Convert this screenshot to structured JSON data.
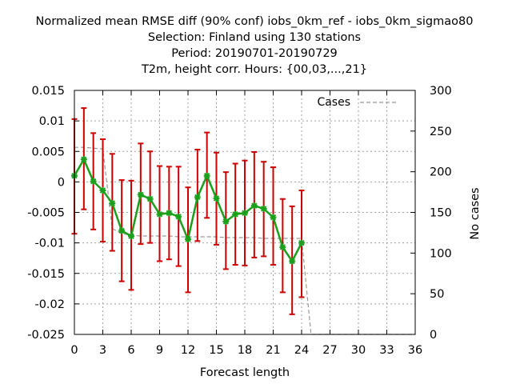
{
  "chart_data": {
    "type": "line",
    "title_lines": [
      "Normalized mean RMSE diff (90% conf) iobs_0km_ref - iobs_0km_sigmao80",
      "Selection: Finland using   130 stations",
      "Period: 20190701-20190729",
      "T2m, height corr.   Hours: {00,03,...,21}"
    ],
    "xlabel": "Forecast length",
    "ylabel_right": "No cases",
    "xlim": [
      0,
      36
    ],
    "ylim": [
      -0.025,
      0.015
    ],
    "y2lim": [
      0,
      300
    ],
    "xticks": [
      "0",
      "3",
      "6",
      "9",
      "12",
      "15",
      "18",
      "21",
      "24",
      "27",
      "30",
      "33",
      "36"
    ],
    "yticks": [
      "0.015",
      "0.01",
      "0.005",
      "0",
      "-0.005",
      "-0.01",
      "-0.015",
      "-0.02",
      "-0.025"
    ],
    "y2ticks": [
      "300",
      "250",
      "200",
      "150",
      "100",
      "50",
      "0"
    ],
    "grid": true,
    "legend_position": "top-right",
    "series": [
      {
        "name": "",
        "color": "#1ca01c",
        "error_color": "#cc0000",
        "x": [
          0,
          1,
          2,
          3,
          4,
          5,
          6,
          7,
          8,
          9,
          10,
          11,
          12,
          13,
          14,
          15,
          16,
          17,
          18,
          19,
          20,
          21,
          22,
          23,
          24
        ],
        "y": [
          0.001,
          0.0037,
          0.0001,
          -0.0014,
          -0.0035,
          -0.008,
          -0.0089,
          -0.0021,
          -0.0028,
          -0.0053,
          -0.0051,
          -0.0057,
          -0.0094,
          -0.0025,
          0.001,
          -0.0027,
          -0.0065,
          -0.0053,
          -0.0051,
          -0.0039,
          -0.0044,
          -0.0058,
          -0.0107,
          -0.013,
          -0.01
        ],
        "upper": [
          0.0103,
          0.0121,
          0.008,
          0.007,
          0.0046,
          0.0003,
          0.0002,
          0.0063,
          0.005,
          0.0026,
          0.0025,
          0.0025,
          -0.0009,
          0.0053,
          0.0081,
          0.0048,
          0.0016,
          0.003,
          0.0035,
          0.0049,
          0.0033,
          0.0024,
          -0.0028,
          -0.004,
          -0.0014
        ],
        "lower": [
          -0.0085,
          -0.0045,
          -0.0078,
          -0.0098,
          -0.0113,
          -0.0163,
          -0.0177,
          -0.0102,
          -0.01,
          -0.013,
          -0.0127,
          -0.0138,
          -0.0181,
          -0.0097,
          -0.0059,
          -0.0103,
          -0.0143,
          -0.0136,
          -0.0137,
          -0.0124,
          -0.0122,
          -0.0136,
          -0.0181,
          -0.0217,
          -0.0189
        ]
      },
      {
        "name": "Cases",
        "color": "#999999",
        "axis": "right",
        "x": [
          0,
          1,
          2,
          3,
          4,
          5,
          6,
          7,
          8,
          9,
          10,
          11,
          12,
          13,
          14,
          15,
          16,
          17,
          18,
          19,
          20,
          21,
          22,
          23,
          24,
          25,
          26,
          27,
          28,
          29,
          30,
          31,
          32,
          33,
          34,
          35,
          36
        ],
        "y": [
          230,
          230,
          229,
          228,
          130,
          124,
          122,
          121,
          121,
          121,
          121,
          120,
          120,
          120,
          120,
          120,
          119,
          119,
          119,
          119,
          118,
          118,
          118,
          118,
          118,
          0,
          0,
          0,
          0,
          0,
          0,
          0,
          0,
          0,
          0,
          0,
          0
        ]
      }
    ]
  }
}
